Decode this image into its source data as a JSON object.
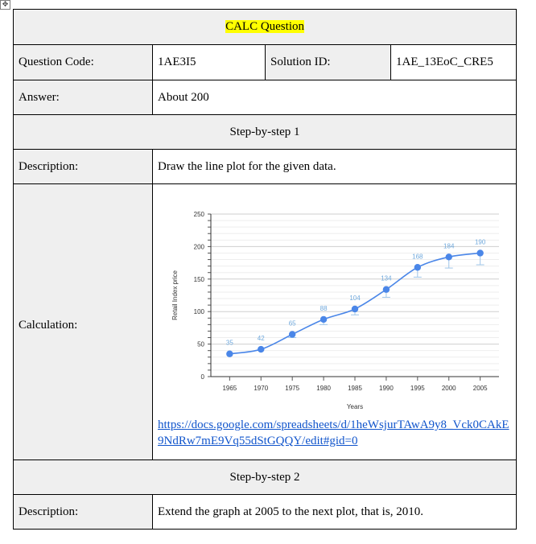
{
  "title": "CALC Question",
  "question_code_label": "Question Code:",
  "question_code": "1AE3I5",
  "solution_id_label": "Solution ID:",
  "solution_id": "1AE_13EoC_CRE5",
  "answer_label": "Answer:",
  "answer": "About 200",
  "steps": [
    {
      "heading": "Step-by-step 1",
      "description_label": "Description:",
      "description": "Draw the line plot for the given data.",
      "calculation_label": "Calculation:",
      "link": "https://docs.google.com/spreadsheets/d/1heWsjurTAwA9y8_Vck0CAkE9NdRw7mE9Vq55dStGQQY/edit#gid=0"
    },
    {
      "heading": "Step-by-step 2",
      "description_label": "Description:",
      "description": "Extend the graph at 2005 to the next plot, that is, 2010."
    }
  ],
  "colors": {
    "highlight": "#ffff00",
    "line": "#4a86e8",
    "label": "#6fa8dc",
    "link": "#1155cc"
  },
  "chart_data": {
    "type": "line",
    "title": "",
    "xlabel": "Years",
    "ylabel": "Retail Index price",
    "x": [
      1965,
      1970,
      1975,
      1980,
      1985,
      1990,
      1995,
      2000,
      2005
    ],
    "y": [
      35,
      42,
      65,
      88,
      104,
      134,
      168,
      184,
      190
    ],
    "error_low": [
      35,
      42,
      60,
      80,
      95,
      122,
      153,
      167,
      172
    ],
    "error_high": [
      35,
      42,
      65,
      88,
      104,
      134,
      168,
      184,
      190
    ],
    "ylim": [
      0,
      250
    ],
    "yticks": [
      0,
      50,
      100,
      150,
      200,
      250
    ],
    "xticks": [
      1965,
      1970,
      1975,
      1980,
      1985,
      1990,
      1995,
      2000,
      2005
    ],
    "data_labels": true,
    "grid": true,
    "smooth": true
  }
}
